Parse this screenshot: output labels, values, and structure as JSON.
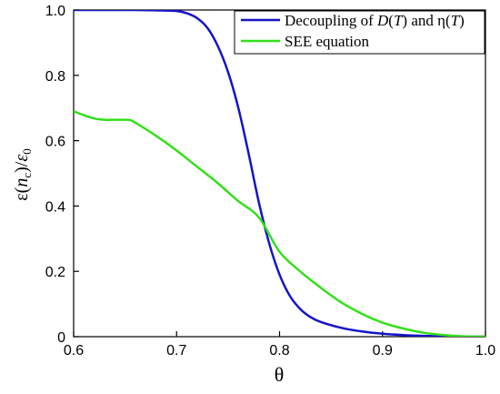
{
  "chart_data": {
    "type": "line",
    "xlabel": "θ",
    "ylabel_parts": {
      "epsilon": "ε",
      "open": "(",
      "n": "n",
      "c": "c",
      "close": ")/",
      "epsilon2": "ε",
      "zero": "0"
    },
    "xlim": [
      0.6,
      1.0
    ],
    "ylim": [
      0.0,
      1.0
    ],
    "xticks": [
      "0.6",
      "0.7",
      "0.8",
      "0.9",
      "1.0"
    ],
    "xtick_values": [
      0.6,
      0.7,
      0.8,
      0.9,
      1.0
    ],
    "yticks": [
      "0",
      "0.2",
      "0.4",
      "0.6",
      "0.8",
      "1.0"
    ],
    "ytick_values": [
      0.0,
      0.2,
      0.4,
      0.6,
      0.8,
      1.0
    ],
    "grid": false,
    "legend_position": "top-right",
    "series": [
      {
        "name": "Decoupling of D(T) and η(T)",
        "color": "#1414c8",
        "x": [
          0.6,
          0.62,
          0.64,
          0.66,
          0.68,
          0.7,
          0.71,
          0.72,
          0.73,
          0.74,
          0.75,
          0.76,
          0.77,
          0.78,
          0.79,
          0.8,
          0.81,
          0.82,
          0.83,
          0.84,
          0.86,
          0.88,
          0.9,
          0.92,
          0.94,
          0.96,
          0.98,
          1.0
        ],
        "y": [
          1.0,
          1.0,
          1.0,
          1.0,
          0.999,
          0.997,
          0.99,
          0.975,
          0.945,
          0.89,
          0.81,
          0.7,
          0.56,
          0.41,
          0.285,
          0.19,
          0.125,
          0.085,
          0.06,
          0.045,
          0.027,
          0.016,
          0.009,
          0.005,
          0.0025,
          0.001,
          0.0003,
          0.0
        ]
      },
      {
        "name": "SEE equation",
        "color": "#33e01a",
        "x": [
          0.6,
          0.61,
          0.62,
          0.63,
          0.64,
          0.65,
          0.655,
          0.66,
          0.68,
          0.7,
          0.72,
          0.74,
          0.76,
          0.78,
          0.8,
          0.82,
          0.84,
          0.86,
          0.88,
          0.9,
          0.92,
          0.94,
          0.96,
          0.98,
          1.0
        ],
        "y": [
          0.69,
          0.678,
          0.668,
          0.664,
          0.664,
          0.664,
          0.663,
          0.655,
          0.615,
          0.57,
          0.52,
          0.47,
          0.415,
          0.365,
          0.26,
          0.2,
          0.15,
          0.105,
          0.07,
          0.043,
          0.025,
          0.012,
          0.005,
          0.001,
          0.0
        ]
      }
    ],
    "legend": {
      "entry1": {
        "prefix": "Decoupling of ",
        "D": "D",
        "open1": "(",
        "T1": "T",
        "mid": ") and η(",
        "T2": "T",
        "close": ")"
      },
      "entry2": "SEE equation"
    }
  }
}
